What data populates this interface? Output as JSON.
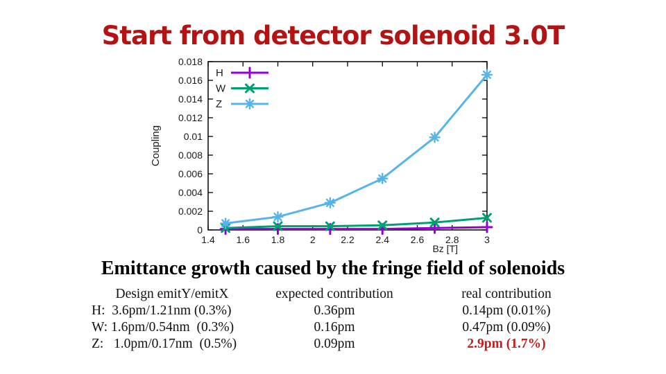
{
  "slide": {
    "title": "Start from detector solenoid 3.0T",
    "subtitle": "Emittance growth caused by the fringe field of solenoids"
  },
  "chart_data": {
    "type": "line",
    "title": "",
    "xlabel": "Bz [T]",
    "ylabel": "Coupling",
    "xlim": [
      1.4,
      3
    ],
    "ylim": [
      0,
      0.018
    ],
    "grid": false,
    "legend_position": "top-left inside plot",
    "x_tick_values": [
      1.4,
      1.6,
      1.8,
      2,
      2.2,
      2.4,
      2.6,
      2.8,
      3
    ],
    "x_tick_labels": [
      "1.4",
      "1.6",
      "1.8",
      "2",
      "2.2",
      "2.4",
      "2.6",
      "2.8",
      "3"
    ],
    "y_tick_values": [
      0,
      0.002,
      0.004,
      0.006,
      0.008,
      0.01,
      0.012,
      0.014,
      0.016,
      0.018
    ],
    "y_tick_labels": [
      "0",
      "0.002",
      "0.004",
      "0.006",
      "0.008",
      "0.01",
      "0.012",
      "0.014",
      "0.016",
      "0.018"
    ],
    "x": [
      1.5,
      1.8,
      2.1,
      2.4,
      2.7,
      3
    ],
    "series": [
      {
        "name": "H",
        "color": "#9400d3",
        "marker": "plus",
        "values": [
          0.0001,
          0.0001,
          0.0001,
          0.0001,
          0.0002,
          0.0003
        ]
      },
      {
        "name": "W",
        "color": "#009e73",
        "marker": "cross",
        "values": [
          0.0002,
          0.0004,
          0.0004,
          0.0005,
          0.0008,
          0.0013
        ]
      },
      {
        "name": "Z",
        "color": "#56b4e9",
        "marker": "asterisk",
        "values": [
          0.0007,
          0.0014,
          0.0029,
          0.0055,
          0.0099,
          0.0166
        ]
      }
    ]
  },
  "table": {
    "col1": {
      "header": "Design emitY/emitX",
      "rows": [
        "H:  3.6pm/1.21nm (0.3%)",
        "W: 1.6pm/0.54nm  (0.3%)",
        "Z:   1.0pm/0.17nm  (0.5%)"
      ]
    },
    "col2": {
      "header": "expected contribution",
      "rows": [
        "0.36pm",
        "0.16pm",
        "0.09pm"
      ]
    },
    "col3": {
      "header": "real contribution",
      "rows": [
        "0.14pm (0.01%)",
        "0.47pm (0.09%)",
        "2.9pm (1.7%)"
      ]
    }
  },
  "colors": {
    "title_red": "#b31312",
    "highlight_red": "#c81b1b",
    "series_h": "#9400d3",
    "series_w": "#009e73",
    "series_z": "#56b4e9"
  }
}
